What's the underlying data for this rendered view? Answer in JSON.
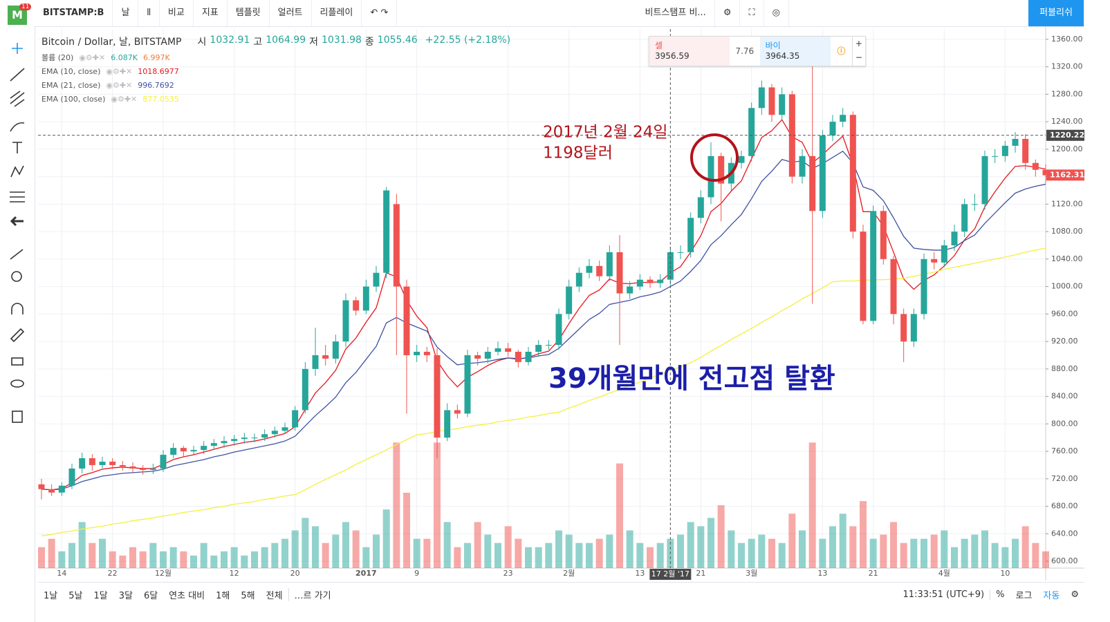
{
  "toolbar": {
    "badge": "11",
    "symbol": "BITSTAMP:B",
    "interval": "날",
    "compare": "비교",
    "indicators": "지표",
    "templates": "템플릿",
    "alerts": "얼러트",
    "replay": "리플레이",
    "account": "비트스탬프 비...",
    "publish": "퍼블리쉬"
  },
  "legend": {
    "symbol": "Bitcoin / Dollar, 날, BITSTAMP",
    "open_label": "시",
    "open": "1032.91",
    "high_label": "고",
    "high": "1064.99",
    "low_label": "저",
    "low": "1031.98",
    "close_label": "종",
    "close": "1055.46",
    "change": "+22.55 (+2.18%)"
  },
  "trade": {
    "sell_label": "셀",
    "sell": "3956.59",
    "spread": "7.76",
    "buy_label": "바이",
    "buy": "3964.35"
  },
  "bottom_bar": {
    "ranges": [
      "1날",
      "5날",
      "1달",
      "3달",
      "6달",
      "연초 대비",
      "1해",
      "5해",
      "전체"
    ],
    "goto": "…르 가기",
    "time": "11:33:51 (UTC+9)",
    "percent": "%",
    "log": "로그",
    "auto": "자동"
  },
  "chart_data": {
    "type": "candlestick",
    "up_color": "#26a69a",
    "down_color": "#ef5350",
    "annotation_date": "2017년 2월 24일",
    "annotation_price": "1198달러",
    "headline": "39개월만에 전고점 탈환",
    "categories": [
      null,
      null,
      "14",
      null,
      null,
      null,
      null,
      "22",
      null,
      null,
      null,
      null,
      "12월",
      null,
      null,
      null,
      null,
      null,
      null,
      "12",
      null,
      null,
      null,
      null,
      null,
      "20",
      null,
      null,
      null,
      null,
      null,
      null,
      "2017",
      null,
      null,
      null,
      null,
      "9",
      null,
      null,
      null,
      null,
      null,
      null,
      null,
      null,
      "23",
      null,
      null,
      null,
      null,
      null,
      "2월",
      null,
      null,
      null,
      null,
      null,
      null,
      "13",
      null,
      null,
      null,
      null,
      null,
      "21",
      null,
      null,
      null,
      null,
      "3월",
      null,
      null,
      null,
      null,
      null,
      null,
      "13",
      null,
      null,
      null,
      null,
      "21",
      null,
      null,
      null,
      null,
      null,
      null,
      "4월",
      null,
      null,
      null,
      null,
      null,
      "10",
      null,
      null,
      null,
      null
    ],
    "open": [
      712,
      705,
      700,
      710,
      735,
      750,
      740,
      745,
      740,
      738,
      735,
      733,
      735,
      755,
      765,
      760,
      762,
      768,
      772,
      775,
      778,
      780,
      780,
      785,
      790,
      795,
      820,
      880,
      900,
      895,
      920,
      980,
      965,
      1000,
      1020,
      1120,
      1000,
      900,
      905,
      900,
      780,
      820,
      815,
      900,
      895,
      905,
      910,
      905,
      890,
      905,
      915,
      915,
      960,
      1000,
      1020,
      1030,
      1015,
      1050,
      990,
      1000,
      1010,
      1005,
      1010,
      1050,
      1050,
      1100,
      1130,
      1190,
      1150,
      1180,
      1190,
      1260,
      1290,
      1250,
      1280,
      1160,
      1190,
      1110,
      1220,
      1240,
      1250,
      1080,
      950,
      1110,
      1040,
      960,
      920,
      960,
      1040,
      1035,
      1060,
      1080,
      1120,
      1120,
      1190,
      1190,
      1205,
      1215,
      1180,
      1170
    ],
    "high": [
      720,
      712,
      715,
      742,
      758,
      756,
      752,
      750,
      746,
      744,
      740,
      742,
      762,
      772,
      768,
      768,
      775,
      778,
      782,
      784,
      787,
      786,
      792,
      796,
      802,
      826,
      890,
      940,
      915,
      930,
      990,
      985,
      1010,
      1030,
      1145,
      1135,
      1010,
      915,
      912,
      910,
      830,
      828,
      908,
      905,
      912,
      920,
      918,
      908,
      912,
      922,
      922,
      968,
      1010,
      1028,
      1040,
      1038,
      1060,
      1075,
      1008,
      1018,
      1015,
      1018,
      1058,
      1060,
      1108,
      1140,
      1210,
      1195,
      1188,
      1198,
      1268,
      1300,
      1295,
      1290,
      1285,
      1200,
      1330,
      1228,
      1250,
      1260,
      1255,
      1090,
      1118,
      1118,
      1045,
      968,
      968,
      1048,
      1050,
      1068,
      1090,
      1128,
      1135,
      1198,
      1200,
      1212,
      1225,
      1222,
      1185,
      1178
    ],
    "low": [
      690,
      695,
      695,
      705,
      728,
      732,
      735,
      734,
      732,
      728,
      726,
      727,
      730,
      750,
      752,
      754,
      756,
      762,
      765,
      768,
      771,
      773,
      775,
      780,
      785,
      790,
      815,
      870,
      885,
      888,
      912,
      958,
      960,
      992,
      1012,
      900,
      815,
      890,
      890,
      750,
      775,
      808,
      810,
      885,
      888,
      900,
      898,
      882,
      885,
      898,
      908,
      908,
      952,
      992,
      1012,
      1008,
      1008,
      915,
      982,
      995,
      998,
      998,
      1002,
      1040,
      1042,
      1092,
      1120,
      1095,
      1140,
      1172,
      1182,
      1250,
      1240,
      1242,
      1150,
      1150,
      975,
      1100,
      1212,
      1232,
      1070,
      945,
      945,
      1032,
      945,
      890,
      912,
      952,
      1025,
      1028,
      1052,
      1072,
      1110,
      1112,
      1180,
      1182,
      1195,
      1170,
      1160,
      1150
    ],
    "close": [
      705,
      700,
      710,
      735,
      750,
      740,
      745,
      740,
      738,
      735,
      733,
      735,
      755,
      765,
      760,
      762,
      768,
      772,
      775,
      778,
      780,
      780,
      785,
      790,
      795,
      820,
      880,
      900,
      895,
      920,
      980,
      965,
      1000,
      1020,
      1140,
      1000,
      900,
      905,
      900,
      780,
      820,
      815,
      900,
      895,
      905,
      910,
      905,
      890,
      905,
      915,
      915,
      960,
      1000,
      1020,
      1030,
      1015,
      1050,
      990,
      1000,
      1010,
      1005,
      1010,
      1050,
      1050,
      1100,
      1130,
      1190,
      1150,
      1180,
      1190,
      1260,
      1290,
      1250,
      1280,
      1160,
      1190,
      1110,
      1220,
      1240,
      1250,
      1080,
      950,
      1110,
      1040,
      960,
      920,
      960,
      1040,
      1035,
      1060,
      1080,
      1120,
      1120,
      1190,
      1190,
      1205,
      1215,
      1180,
      1170,
      1162
    ],
    "volume": {
      "name": "볼륨 (20)",
      "legend_values": [
        "6.087K",
        "6.997K"
      ],
      "ylim": [
        0,
        35
      ],
      "values": [
        5,
        7,
        4,
        6,
        11,
        6,
        7,
        4,
        3,
        5,
        4,
        6,
        4,
        5,
        4,
        3,
        6,
        3,
        4,
        5,
        3,
        4,
        5,
        6,
        7,
        9,
        12,
        10,
        6,
        8,
        11,
        9,
        5,
        8,
        14,
        30,
        18,
        7,
        7,
        30,
        11,
        5,
        6,
        11,
        8,
        6,
        10,
        7,
        5,
        5,
        6,
        9,
        8,
        6,
        6,
        7,
        8,
        25,
        9,
        6,
        5,
        6,
        7,
        8,
        11,
        10,
        12,
        15,
        9,
        6,
        7,
        8,
        7,
        6,
        13,
        9,
        30,
        7,
        10,
        13,
        10,
        16,
        7,
        8,
        11,
        6,
        7,
        7,
        8,
        9,
        5,
        7,
        8,
        9,
        6,
        5,
        7,
        10,
        6,
        4
      ]
    },
    "ema": [
      {
        "name": "EMA (10, close)",
        "color": "#e8141b",
        "legend_value": "1018.6977",
        "values": [
          705,
          704,
          706,
          714,
          725,
          729,
          734,
          736,
          737,
          736,
          735,
          735,
          741,
          748,
          752,
          755,
          759,
          763,
          767,
          770,
          773,
          775,
          778,
          782,
          786,
          796,
          821,
          845,
          860,
          878,
          909,
          925,
          948,
          969,
          1020,
          1014,
          980,
          957,
          940,
          892,
          870,
          854,
          868,
          876,
          885,
          892,
          896,
          894,
          897,
          902,
          906,
          922,
          946,
          968,
          987,
          995,
          1011,
          1005,
          1004,
          1006,
          1006,
          1007,
          1020,
          1029,
          1050,
          1074,
          1109,
          1121,
          1139,
          1154,
          1186,
          1217,
          1227,
          1243,
          1218,
          1210,
          1180,
          1192,
          1206,
          1219,
          1177,
          1109,
          1109,
          1088,
          1050,
          1011,
          996,
          1009,
          1017,
          1030,
          1045,
          1068,
          1084,
          1116,
          1138,
          1158,
          1175,
          1176,
          1174,
          1171
        ]
      },
      {
        "name": "EMA (21, close)",
        "color": "#3f51a3",
        "legend_value": "996.7692",
        "values": [
          705,
          704,
          705,
          710,
          716,
          720,
          724,
          726,
          728,
          729,
          730,
          731,
          734,
          739,
          742,
          745,
          748,
          752,
          755,
          759,
          762,
          765,
          768,
          771,
          775,
          782,
          797,
          812,
          825,
          839,
          860,
          875,
          894,
          913,
          947,
          955,
          947,
          941,
          935,
          912,
          898,
          886,
          888,
          889,
          891,
          894,
          896,
          895,
          896,
          899,
          901,
          910,
          924,
          938,
          952,
          961,
          974,
          977,
          980,
          985,
          988,
          992,
          1000,
          1008,
          1022,
          1038,
          1061,
          1074,
          1090,
          1105,
          1128,
          1153,
          1168,
          1185,
          1181,
          1183,
          1172,
          1179,
          1188,
          1197,
          1180,
          1145,
          1140,
          1125,
          1100,
          1073,
          1056,
          1054,
          1053,
          1053,
          1057,
          1067,
          1075,
          1092,
          1107,
          1122,
          1136,
          1142,
          1146,
          1149
        ]
      },
      {
        "name": "EMA (100, close)",
        "color": "#f5f03a",
        "legend_value": "877.0535",
        "values": [
          637,
          639,
          642,
          644,
          647,
          649,
          651,
          654,
          656,
          659,
          661,
          663,
          666,
          668,
          671,
          673,
          675,
          678,
          680,
          683,
          685,
          687,
          690,
          692,
          695,
          697,
          704,
          712,
          719,
          726,
          733,
          741,
          748,
          755,
          762,
          770,
          777,
          784,
          786,
          789,
          791,
          793,
          796,
          798,
          800,
          803,
          805,
          807,
          810,
          812,
          815,
          817,
          823,
          828,
          834,
          839,
          845,
          850,
          856,
          861,
          867,
          872,
          878,
          883,
          889,
          897,
          906,
          914,
          923,
          931,
          939,
          948,
          956,
          965,
          973,
          982,
          990,
          998,
          1007,
          1008,
          1008,
          1009,
          1010,
          1010,
          1011,
          1012,
          1015,
          1018,
          1021,
          1025,
          1028,
          1031,
          1034,
          1037,
          1040,
          1043,
          1046,
          1050,
          1053,
          1056
        ]
      }
    ],
    "ylim": [
      590,
      1375
    ],
    "yticks": [
      {
        "value": 600,
        "label": "600.00"
      },
      {
        "value": 640,
        "label": "640.00"
      },
      {
        "value": 680,
        "label": "680.00"
      },
      {
        "value": 720,
        "label": "720.00"
      },
      {
        "value": 760,
        "label": "760.00"
      },
      {
        "value": 800,
        "label": "800.00"
      },
      {
        "value": 840,
        "label": "840.00"
      },
      {
        "value": 880,
        "label": "880.00"
      },
      {
        "value": 920,
        "label": "920.00"
      },
      {
        "value": 960,
        "label": "960.00"
      },
      {
        "value": 1000,
        "label": "1000.00"
      },
      {
        "value": 1040,
        "label": "1040.00"
      },
      {
        "value": 1080,
        "label": "1080.00"
      },
      {
        "value": 1120,
        "label": "1120.00"
      },
      {
        "value": 1160,
        "label": "1160.00"
      },
      {
        "value": 1200,
        "label": "1200.00"
      },
      {
        "value": 1240,
        "label": "1240.00"
      },
      {
        "value": 1280,
        "label": "1280.00"
      },
      {
        "value": 1320,
        "label": "1320.00"
      },
      {
        "value": 1360,
        "label": "1360.00"
      }
    ],
    "grid": true,
    "crosshair": {
      "price": 1220.22,
      "index": 62,
      "date_label": "17 2월 '17"
    },
    "last_price": 1162.31
  }
}
